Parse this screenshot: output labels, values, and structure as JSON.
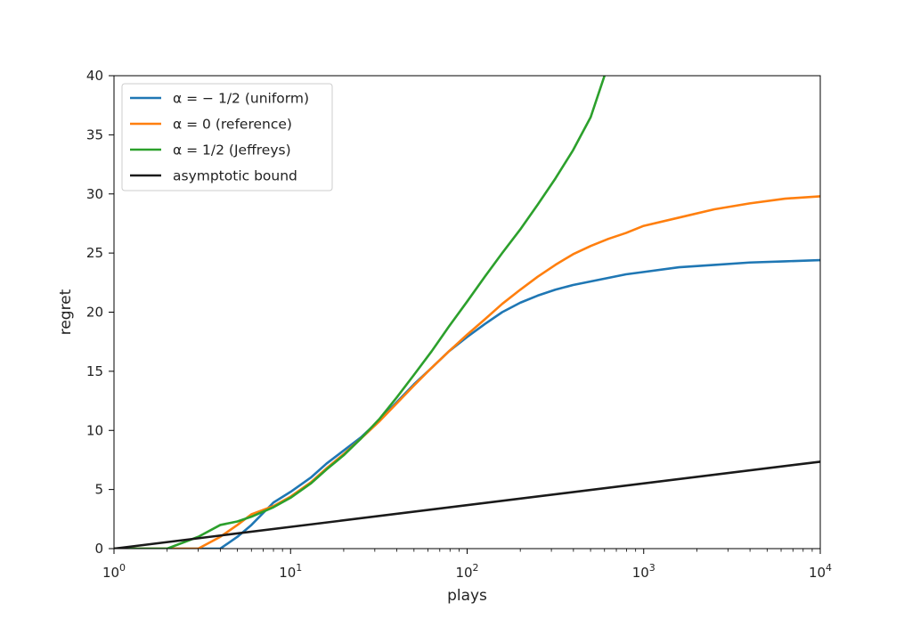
{
  "chart_data": {
    "type": "line",
    "xlabel": "plays",
    "ylabel": "regret",
    "xscale": "log",
    "xlim": [
      1,
      10000
    ],
    "ylim": [
      0,
      40
    ],
    "grid": false,
    "legend_position": "top-left",
    "x_ticks": [
      {
        "value": 1,
        "base": "10",
        "exp": "0"
      },
      {
        "value": 10,
        "base": "10",
        "exp": "1"
      },
      {
        "value": 100,
        "base": "10",
        "exp": "2"
      },
      {
        "value": 1000,
        "base": "10",
        "exp": "3"
      },
      {
        "value": 10000,
        "base": "10",
        "exp": "4"
      }
    ],
    "y_ticks": [
      "0",
      "5",
      "10",
      "15",
      "20",
      "25",
      "30",
      "35",
      "40"
    ],
    "series": [
      {
        "name": "α = − 1/2 (uniform)",
        "color": "#1f77b4",
        "x": [
          1,
          3,
          4,
          5,
          6,
          8,
          10,
          13,
          16,
          20,
          25,
          32,
          40,
          50,
          63,
          79,
          100,
          126,
          158,
          200,
          251,
          316,
          398,
          501,
          631,
          794,
          1000,
          1585,
          2512,
          3981,
          6310,
          10000
        ],
        "y": [
          0,
          0,
          0,
          1.0,
          2.0,
          3.9,
          4.8,
          6.0,
          7.2,
          8.3,
          9.4,
          10.9,
          12.4,
          13.9,
          15.3,
          16.7,
          17.9,
          19.0,
          20.0,
          20.8,
          21.4,
          21.9,
          22.3,
          22.6,
          22.9,
          23.2,
          23.4,
          23.8,
          24.0,
          24.2,
          24.3,
          24.4
        ]
      },
      {
        "name": "α = 0 (reference)",
        "color": "#ff7f0e",
        "x": [
          1,
          2,
          3,
          4,
          5,
          6,
          8,
          10,
          13,
          16,
          20,
          25,
          32,
          40,
          50,
          63,
          79,
          100,
          126,
          158,
          200,
          251,
          316,
          398,
          501,
          631,
          794,
          1000,
          1585,
          2512,
          3981,
          6310,
          10000
        ],
        "y": [
          0,
          0,
          0,
          1.0,
          2.0,
          2.9,
          3.6,
          4.4,
          5.6,
          6.8,
          8.0,
          9.3,
          10.8,
          12.3,
          13.8,
          15.3,
          16.7,
          18.1,
          19.4,
          20.7,
          21.9,
          23.0,
          24.0,
          24.9,
          25.6,
          26.2,
          26.7,
          27.3,
          28.0,
          28.7,
          29.2,
          29.6,
          29.8
        ]
      },
      {
        "name": "α = 1/2 (Jeffreys)",
        "color": "#2ca02c",
        "x": [
          1,
          2,
          3,
          4,
          5,
          6,
          8,
          10,
          13,
          16,
          20,
          25,
          32,
          40,
          50,
          63,
          79,
          100,
          126,
          158,
          200,
          251,
          316,
          398,
          501,
          600
        ],
        "y": [
          0,
          0,
          1.0,
          2.0,
          2.3,
          2.7,
          3.5,
          4.3,
          5.5,
          6.7,
          7.9,
          9.3,
          11.0,
          12.8,
          14.7,
          16.7,
          18.8,
          20.9,
          23.0,
          25.0,
          27.0,
          29.1,
          31.3,
          33.7,
          36.5,
          40.0
        ]
      },
      {
        "name": "asymptotic bound",
        "color": "#1a1a1a",
        "x": [
          1,
          10000
        ],
        "y": [
          0,
          7.35
        ]
      }
    ]
  }
}
